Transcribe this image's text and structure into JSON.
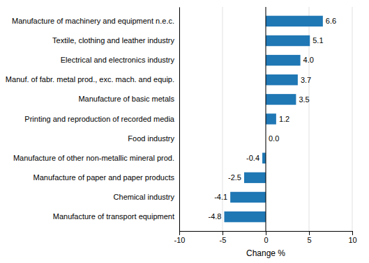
{
  "chart_data": {
    "type": "bar",
    "orientation": "horizontal",
    "categories": [
      "Manufacture of transport equipment",
      "Chemical industry",
      "Manufacture of paper and paper products",
      "Manufacture of other non-metallic mineral prod.",
      "Food industry",
      "Printing and reproduction of recorded media",
      "Manufacture of basic metals",
      "Manuf. of fabr. metal prod., exc. mach. and equip.",
      "Electrical and electronics industry",
      "Textile, clothing and leather industry",
      "Manufacture of machinery and equipment n.e.c."
    ],
    "values": [
      -4.8,
      -4.1,
      -2.5,
      -0.4,
      0.0,
      1.2,
      3.5,
      3.7,
      4.0,
      5.1,
      6.6
    ],
    "value_labels": [
      "-4.8",
      "-4.1",
      "-2.5",
      "-0.4",
      "0.0",
      "1.2",
      "3.5",
      "3.7",
      "4.0",
      "5.1",
      "6.6"
    ],
    "data_labels": true,
    "color": "#1f77b4",
    "xlabel": "Change %",
    "xlim": [
      -10,
      10
    ],
    "xticks": [
      -10,
      -5,
      0,
      5,
      10
    ],
    "grid": true
  }
}
